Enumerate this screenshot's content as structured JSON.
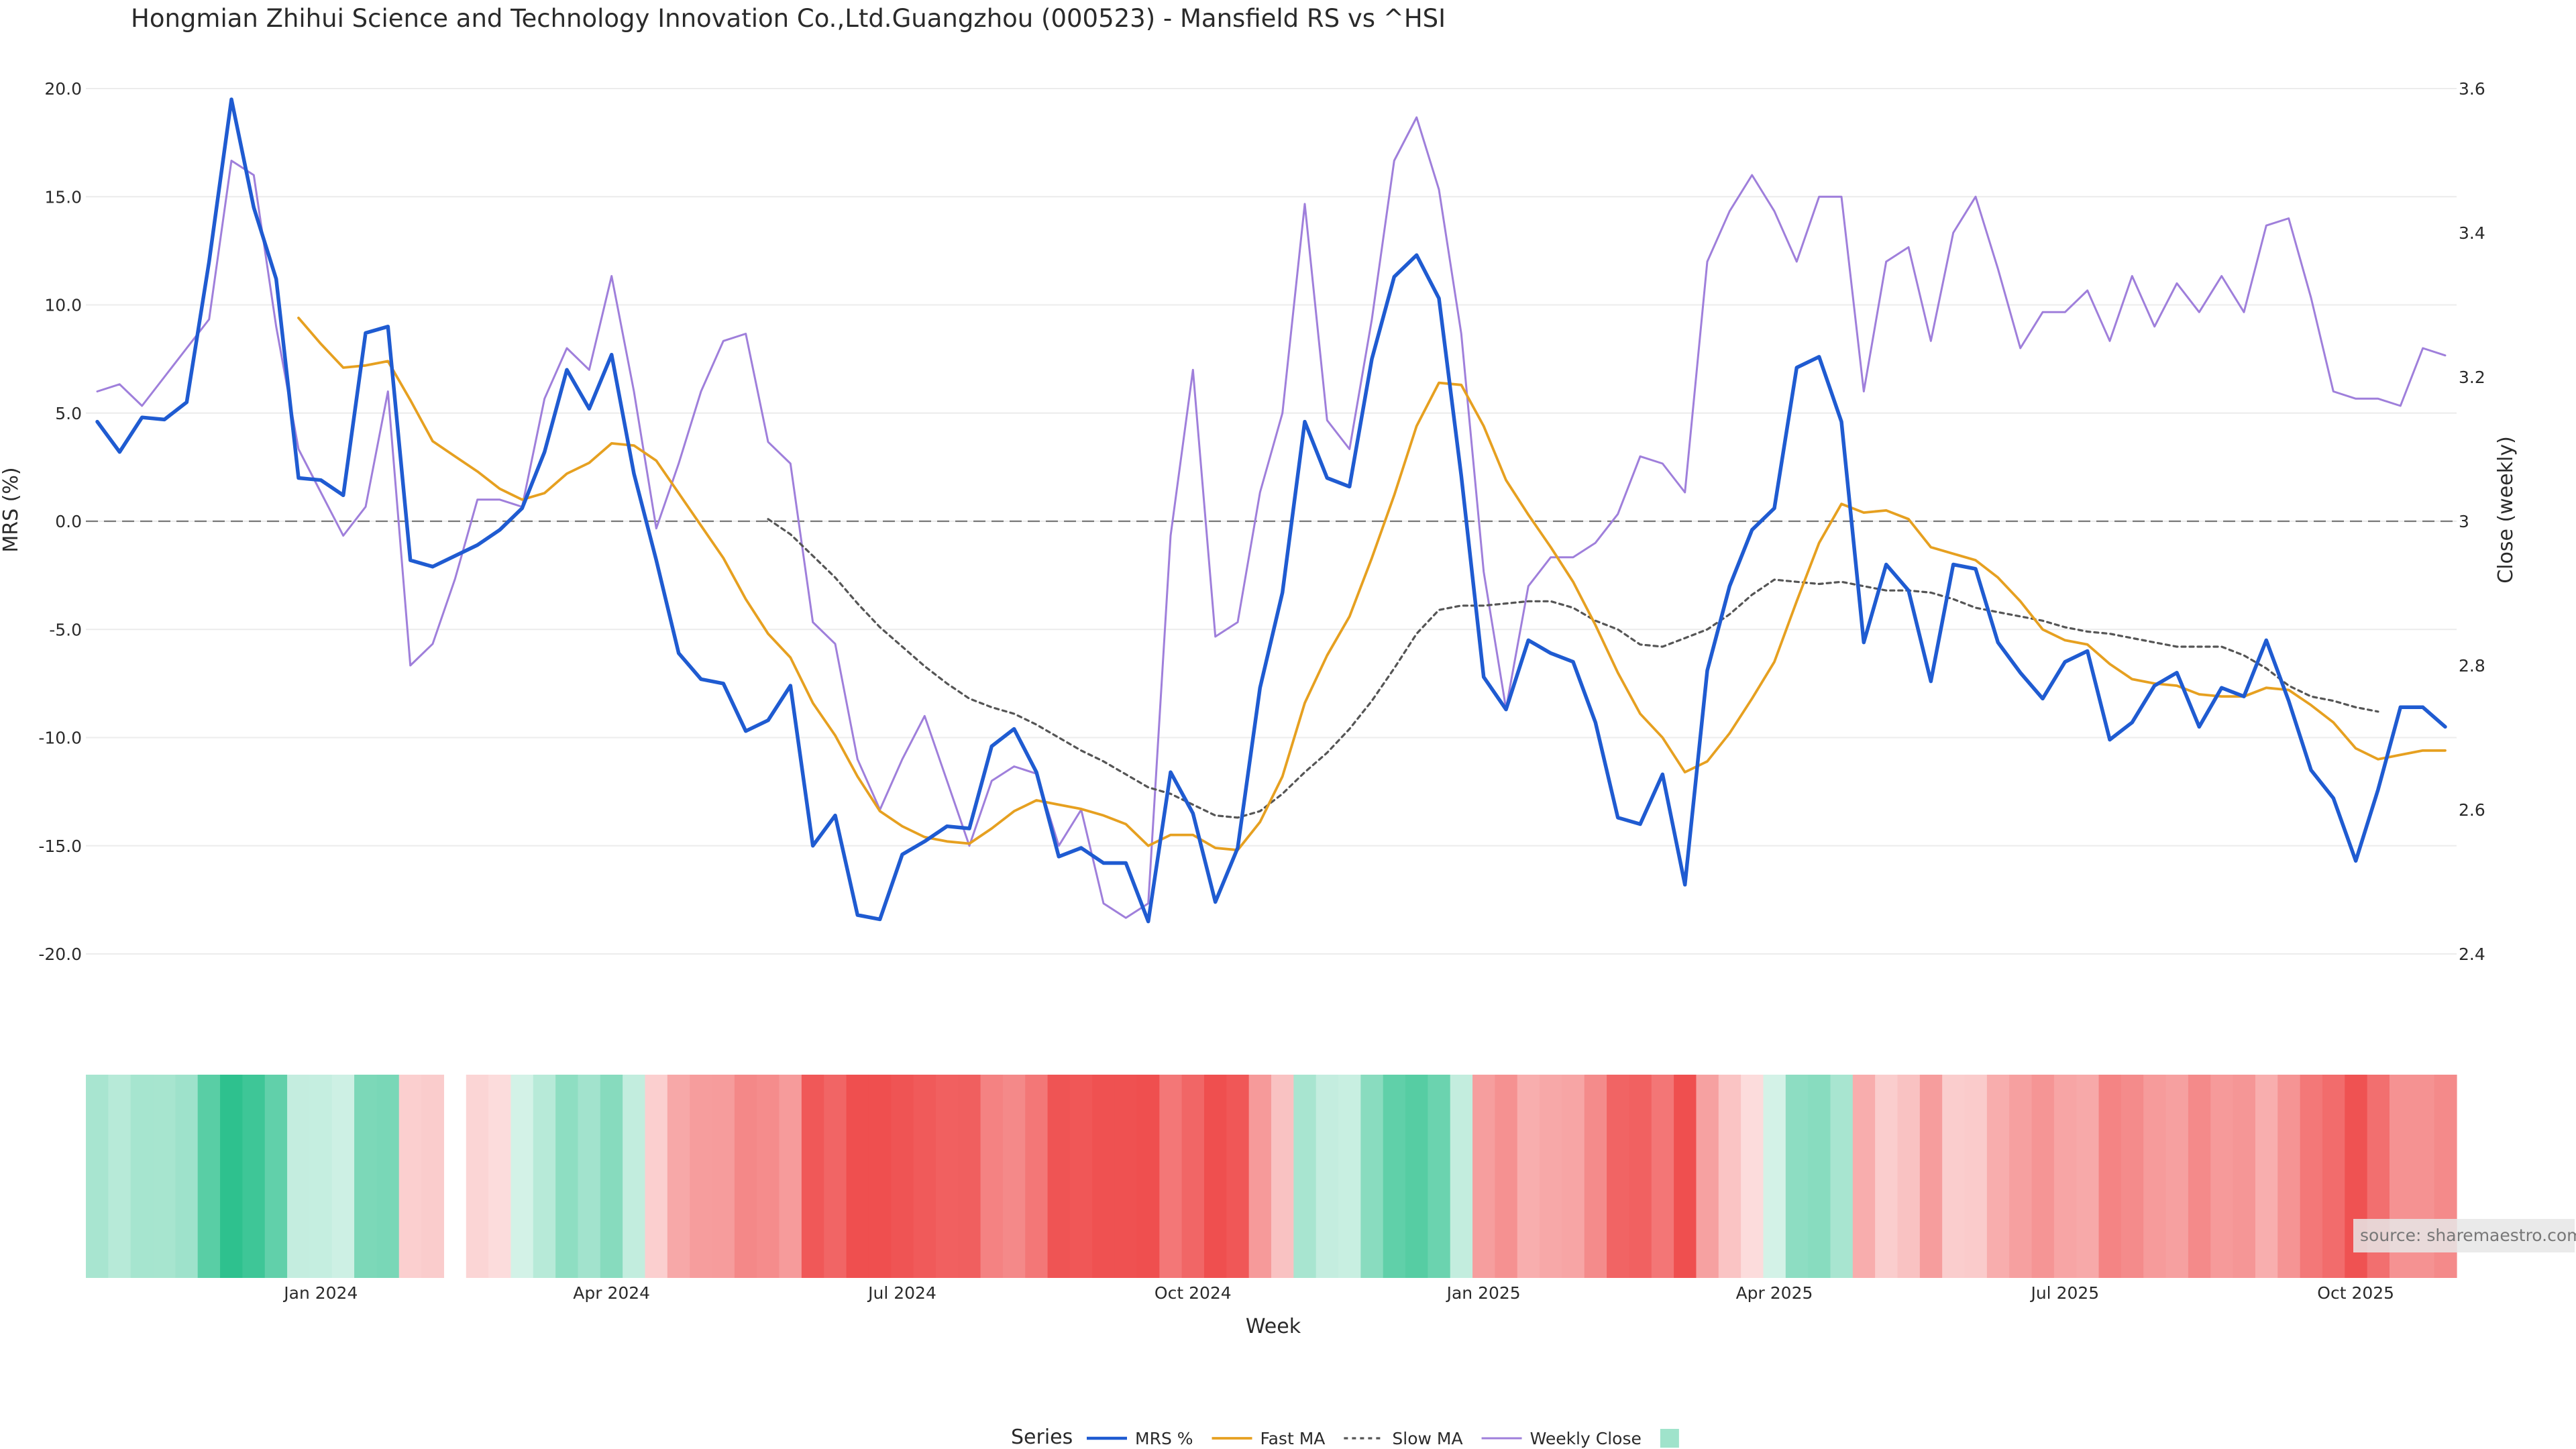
{
  "chart_data": {
    "type": "line",
    "title": "Hongmian Zhihui Science and Technology Innovation Co.,Ltd.Guangzhou (000523) - Mansfield RS vs ^HSI",
    "xlabel": "Week",
    "ylabel_left": "MRS (%)",
    "ylabel_right": "Close (weekly)",
    "ylim_left": [
      -20,
      20
    ],
    "ylim_right": [
      2.4,
      3.6
    ],
    "yticks_left": [
      "20.0",
      "15.0",
      "10.0",
      "5.0",
      "0.0",
      "-5.0",
      "-10.0",
      "-15.0",
      "-20.0"
    ],
    "yticks_right": [
      "3.6",
      "3.4",
      "3.2",
      "3",
      "2.8",
      "2.6",
      "2.4"
    ],
    "x_ticks": [
      "Jan 2024",
      "Apr 2024",
      "Jul 2024",
      "Oct 2024",
      "Jan 2025",
      "Apr 2025",
      "Jul 2025",
      "Oct 2025"
    ],
    "x_tick_week_index": [
      10,
      23,
      36,
      49,
      62,
      75,
      88,
      101
    ],
    "grid": true,
    "zero_line": true,
    "legend_title": "Series",
    "legend_position": "bottom-center",
    "series": [
      {
        "name": "MRS %",
        "color": "#1f5bd1",
        "values": [
          4.6,
          3.2,
          4.8,
          4.7,
          5.5,
          12,
          19.5,
          14.5,
          11.2,
          2,
          1.9,
          1.2,
          8.7,
          9,
          -1.8,
          -2.1,
          -1.6,
          -1.1,
          -0.4,
          0.6,
          3.2,
          7,
          5.2,
          7.7,
          2.2,
          -1.8,
          -6.1,
          -7.3,
          -7.5,
          -9.7,
          -9.2,
          -7.6,
          -15,
          -13.6,
          -18.2,
          -18.4,
          -15.4,
          -14.8,
          -14.1,
          -14.2,
          -10.4,
          -9.6,
          -11.6,
          -15.5,
          -15.1,
          -15.8,
          -15.8,
          -18.5,
          -11.6,
          -13.5,
          -17.6,
          -15.1,
          -7.7,
          -3.3,
          4.6,
          2,
          1.6,
          7.5,
          11.3,
          12.3,
          10.3,
          2.1,
          -7.2,
          -8.7,
          -5.5,
          -6.1,
          -6.5,
          -9.3,
          -13.7,
          -14,
          -11.7,
          -16.8,
          -6.9,
          -3,
          -0.4,
          0.6,
          7.1,
          7.6,
          4.6,
          -5.6,
          -2,
          -3.2,
          -7.4,
          -2,
          -2.2,
          -5.6,
          -7,
          -8.2,
          -6.5,
          -6,
          -10.1,
          -9.3,
          -7.6,
          -7,
          -9.5,
          -7.7,
          -8.1,
          -5.5,
          -8.3,
          -11.5,
          -12.8,
          -15.7,
          -12.4,
          -8.6,
          -8.6,
          -9.5
        ]
      },
      {
        "name": "Fast MA",
        "color": "#e6a020",
        "values": [
          null,
          null,
          null,
          null,
          null,
          null,
          null,
          null,
          null,
          9.4,
          8.2,
          7.1,
          7.2,
          7.4,
          5.6,
          3.7,
          3,
          2.3,
          1.5,
          1,
          1.3,
          2.2,
          2.7,
          3.6,
          3.5,
          2.8,
          1.3,
          -0.2,
          -1.7,
          -3.6,
          -5.2,
          -6.3,
          -8.4,
          -9.9,
          -11.8,
          -13.4,
          -14.1,
          -14.6,
          -14.8,
          -14.9,
          -14.2,
          -13.4,
          -12.9,
          -13.1,
          -13.3,
          -13.6,
          -14,
          -15,
          -14.5,
          -14.5,
          -15.1,
          -15.2,
          -13.9,
          -11.8,
          -8.4,
          -6.2,
          -4.4,
          -1.7,
          1.2,
          4.4,
          6.4,
          6.3,
          4.4,
          1.9,
          0.3,
          -1.2,
          -2.8,
          -4.8,
          -7,
          -8.9,
          -10,
          -11.6,
          -11.1,
          -9.8,
          -8.2,
          -6.5,
          -3.7,
          -1,
          0.8,
          0.4,
          0.5,
          0.1,
          -1.2,
          -1.5,
          -1.8,
          -2.6,
          -3.7,
          -5,
          -5.5,
          -5.7,
          -6.6,
          -7.3,
          -7.5,
          -7.6,
          -8,
          -8.1,
          -8.1,
          -7.7,
          -7.8,
          -8.5,
          -9.3,
          -10.5,
          -11,
          -10.8,
          -10.6,
          -10.6
        ]
      },
      {
        "name": "Slow MA",
        "color": "#555555",
        "values": [
          null,
          null,
          null,
          null,
          null,
          null,
          null,
          null,
          null,
          null,
          null,
          null,
          null,
          null,
          null,
          null,
          null,
          null,
          null,
          null,
          null,
          null,
          null,
          null,
          null,
          null,
          null,
          null,
          null,
          null,
          0.1,
          -0.6,
          -1.6,
          -2.6,
          -3.8,
          -4.9,
          -5.8,
          -6.7,
          -7.5,
          -8.2,
          -8.6,
          -8.9,
          -9.4,
          -10,
          -10.6,
          -11.1,
          -11.7,
          -12.3,
          -12.6,
          -13.1,
          -13.6,
          -13.7,
          -13.4,
          -12.6,
          -11.6,
          -10.7,
          -9.6,
          -8.3,
          -6.8,
          -5.2,
          -4.1,
          -3.9,
          -3.9,
          -3.8,
          -3.7,
          -3.7,
          -4,
          -4.6,
          -5,
          -5.7,
          -5.8,
          -5.4,
          -5,
          -4.3,
          -3.4,
          -2.7,
          -2.8,
          -2.9,
          -2.8,
          -3,
          -3.2,
          -3.2,
          -3.3,
          -3.6,
          -4,
          -4.2,
          -4.4,
          -4.6,
          -4.9,
          -5.1,
          -5.2,
          -5.4,
          -5.6,
          -5.8,
          -5.8,
          -5.8,
          -6.2,
          -6.8,
          -7.6,
          -8.1,
          -8.3,
          -8.6,
          -8.8
        ]
      },
      {
        "name": "Weekly Close",
        "color": "#9f7fdb",
        "axis": "right",
        "values": [
          3.18,
          3.19,
          3.16,
          3.2,
          3.24,
          3.28,
          3.5,
          3.48,
          3.27,
          3.1,
          3.04,
          2.98,
          3.02,
          3.18,
          2.8,
          2.83,
          2.92,
          3.03,
          3.03,
          3.02,
          3.17,
          3.24,
          3.21,
          3.34,
          3.18,
          2.99,
          3.08,
          3.18,
          3.25,
          3.26,
          3.11,
          3.08,
          2.86,
          2.83,
          2.67,
          2.6,
          2.67,
          2.73,
          2.64,
          2.55,
          2.64,
          2.66,
          2.65,
          2.55,
          2.6,
          2.47,
          2.45,
          2.47,
          2.98,
          3.21,
          2.84,
          2.86,
          3.04,
          3.15,
          3.44,
          3.14,
          3.1,
          3.28,
          3.5,
          3.56,
          3.46,
          3.26,
          2.93,
          2.74,
          2.91,
          2.95,
          2.95,
          2.97,
          3.01,
          3.09,
          3.08,
          3.04,
          3.36,
          3.43,
          3.48,
          3.43,
          3.36,
          3.45,
          3.45,
          3.18,
          3.36,
          3.38,
          3.25,
          3.4,
          3.45,
          3.35,
          3.24,
          3.29,
          3.29,
          3.32,
          3.25,
          3.34,
          3.27,
          3.33,
          3.29,
          3.34,
          3.29,
          3.41,
          3.42,
          3.31,
          3.18,
          3.17,
          3.17,
          3.16,
          3.24,
          3.23
        ]
      }
    ],
    "heat_strip": {
      "description": "weekly MRS colour band (green = positive, red = negative)",
      "values": [
        4.6,
        3.2,
        4.8,
        4.7,
        5.5,
        12,
        19.5,
        14.5,
        11.2,
        2,
        1.9,
        1.2,
        8.7,
        9,
        -1.8,
        -2.1,
        -1.6,
        -1.1,
        -0.4,
        0.6,
        3.2,
        7,
        5.2,
        7.7,
        2.2,
        -1.8,
        -6.1,
        -7.3,
        -7.5,
        -9.7,
        -9.2,
        -7.6,
        -15,
        -13.6,
        -18.2,
        -18.4,
        -15.4,
        -14.8,
        -14.1,
        -14.2,
        -10.4,
        -9.6,
        -11.6,
        -15.5,
        -15.1,
        -15.8,
        -15.8,
        -18.5,
        -11.6,
        -13.5,
        -17.6,
        -15.1,
        -7.7,
        -3.3,
        4.6,
        2,
        1.6,
        7.5,
        11.3,
        12.3,
        10.3,
        2.1,
        -7.2,
        -8.7,
        -5.5,
        -6.1,
        -6.5,
        -9.3,
        -13.7,
        -14,
        -11.7,
        -16.8,
        -6.9,
        -3,
        -0.4,
        0.6,
        7.1,
        7.6,
        4.6,
        -5.6,
        -2,
        -3.2,
        -7.4,
        -2,
        -2.2,
        -5.6,
        -7,
        -8.2,
        -6.5,
        -6,
        -10.1,
        -9.3,
        -7.6,
        -7,
        -9.5,
        -7.7,
        -8.1,
        -5.5,
        -8.3,
        -11.5,
        -12.8,
        -15.7,
        -12.4,
        -8.6,
        -8.6,
        -9.5
      ],
      "gap_week_index": 16,
      "positive_color": "#2ec18e",
      "negative_color": "#ef4f4f"
    },
    "source": "source: sharemaestro.com"
  }
}
